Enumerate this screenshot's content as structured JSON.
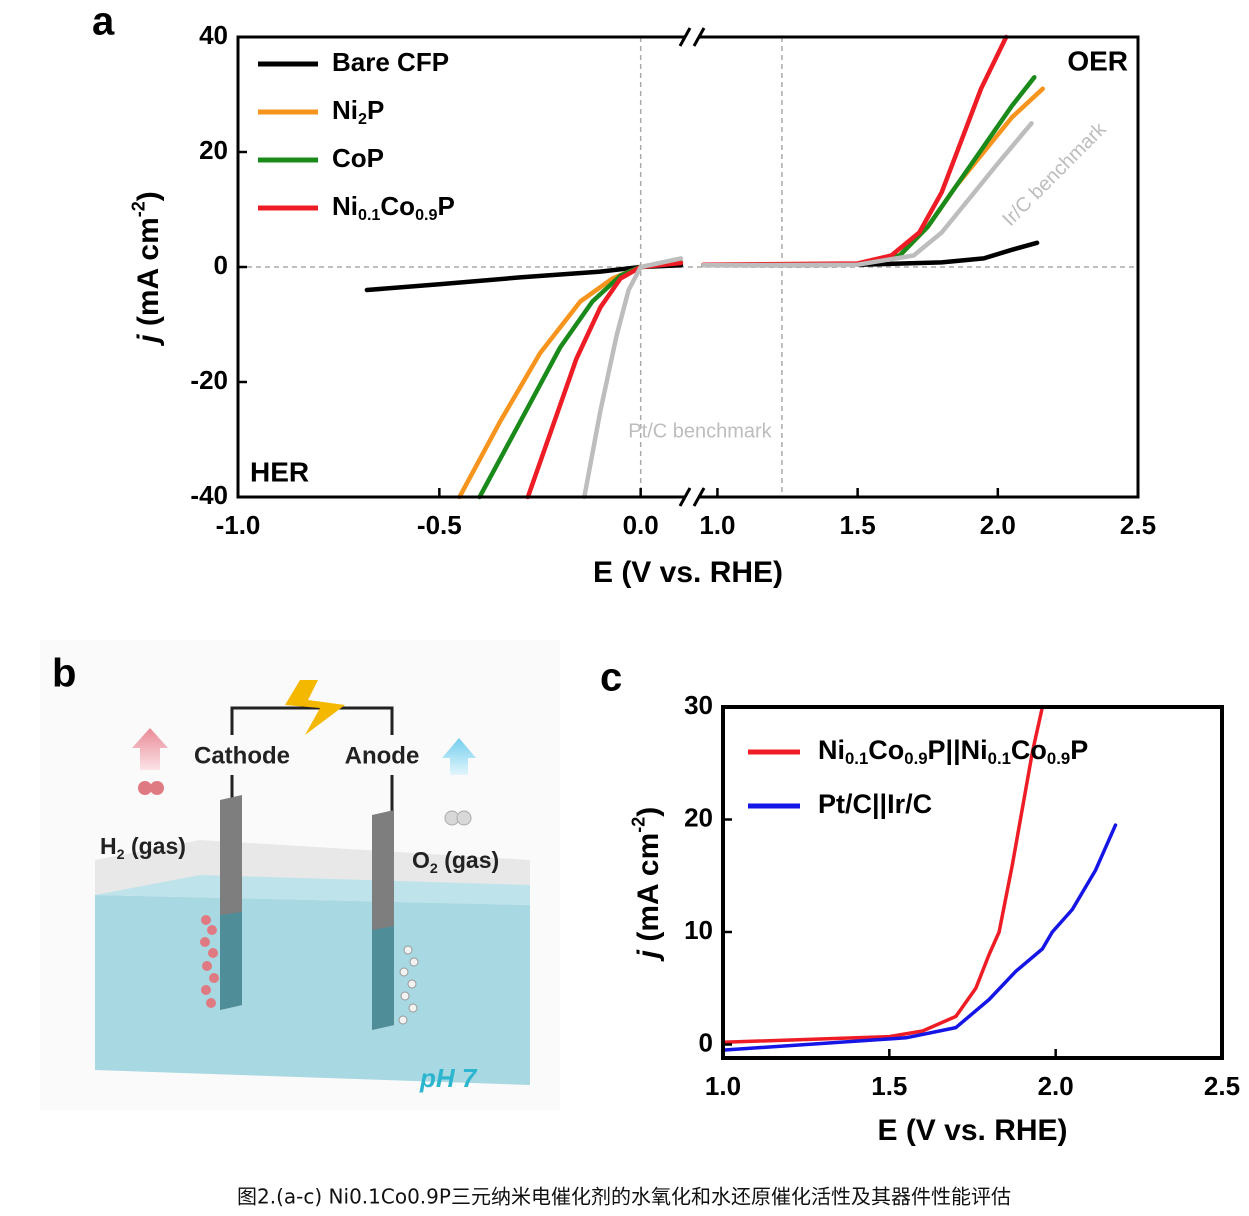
{
  "figure": {
    "caption": "图2.(a-c) Ni0.1Co0.9P三元纳米电催化剂的水氧化和水还原催化活性及其器件性能评估",
    "panel_b": {
      "label": "b",
      "cathode": "Cathode",
      "anode": "Anode",
      "h2": "H2 (gas)",
      "o2": "O2 (gas)",
      "ph": "pH 7"
    }
  },
  "chart_data": [
    {
      "type": "line",
      "panel_label": "a",
      "x_label": "E (V vs. RHE)",
      "y_label": "j (mA cm-2)",
      "xlim": [
        -1.0,
        2.5
      ],
      "xbreak": [
        0.12,
        0.92
      ],
      "xticks": [
        {
          "value": -1,
          "label": "-1.0"
        },
        -0.5,
        {
          "value": 0,
          "label": "0.0"
        },
        {
          "value": 1,
          "label": "1.0"
        },
        1.5,
        {
          "value": 2,
          "label": "2.0"
        },
        2.5
      ],
      "ylim": [
        -40,
        40
      ],
      "yticks": [
        -40,
        -20,
        0,
        20,
        40
      ],
      "grid": false,
      "legend": "upper left",
      "ref_lines": {
        "x": [
          0,
          1.23
        ],
        "y": [
          0
        ]
      },
      "annotations": [
        {
          "text": "HER"
        },
        {
          "text": "OER"
        }
      ],
      "series": [
        {
          "name": "Bare CFP",
          "color": "#000000",
          "x": [
            -0.68,
            -0.5,
            -0.3,
            -0.1,
            0,
            0.1,
            null,
            0.95,
            1.5,
            1.8,
            1.95,
            2.05,
            2.14
          ],
          "values": [
            -4,
            -3,
            -1.8,
            -0.8,
            0,
            0.3,
            null,
            0.3,
            0.4,
            0.8,
            1.5,
            3,
            4.2
          ]
        },
        {
          "name": "Ni2P",
          "color": "#f7941d",
          "x": [
            -0.45,
            -0.35,
            -0.25,
            -0.15,
            -0.07,
            0,
            0.1,
            null,
            0.95,
            1.5,
            1.65,
            1.75,
            1.85,
            1.95,
            2.05,
            2.16
          ],
          "values": [
            -40,
            -27,
            -15,
            -6,
            -2,
            0,
            0.8,
            null,
            0.3,
            0.5,
            2,
            7,
            14,
            20,
            26,
            31
          ]
        },
        {
          "name": "CoP",
          "color": "#1a8a1a",
          "x": [
            -0.4,
            -0.3,
            -0.2,
            -0.12,
            -0.05,
            0,
            0.1,
            null,
            0.95,
            1.5,
            1.65,
            1.75,
            1.85,
            1.95,
            2.05,
            2.13
          ],
          "values": [
            -40,
            -27,
            -14,
            -6,
            -1.5,
            0,
            0.8,
            null,
            0.3,
            0.5,
            2,
            7,
            14,
            21,
            28,
            33
          ]
        },
        {
          "name": "Ni0.1Co0.9P",
          "color": "#ee1c25",
          "x": [
            -0.28,
            -0.22,
            -0.16,
            -0.1,
            -0.05,
            0,
            0.1,
            null,
            0.95,
            1.5,
            1.62,
            1.72,
            1.8,
            1.87,
            1.94,
            2.03
          ],
          "values": [
            -40,
            -28,
            -16,
            -7,
            -2,
            0,
            0.7,
            null,
            0.4,
            0.6,
            2,
            6,
            13,
            22,
            31,
            40
          ]
        },
        {
          "name": "Pt/C benchmark",
          "color": "#bdbdbd",
          "legend": false,
          "x": [
            -0.14,
            -0.1,
            -0.06,
            -0.03,
            0,
            0.1
          ],
          "values": [
            -40,
            -25,
            -12,
            -4,
            0,
            1.5
          ]
        },
        {
          "name": "Ir/C benchmark",
          "color": "#bdbdbd",
          "legend": false,
          "x": [
            0.95,
            1.5,
            1.7,
            1.8,
            1.9,
            2.0,
            2.12
          ],
          "values": [
            0.3,
            0.4,
            2,
            6,
            12,
            18,
            25
          ]
        }
      ]
    },
    {
      "type": "line",
      "panel_label": "c",
      "x_label": "E (V vs. RHE)",
      "y_label": "j (mA cm-2)",
      "xlim": [
        1.0,
        2.5
      ],
      "xticks": [
        {
          "value": 1,
          "label": "1.0"
        },
        1.5,
        {
          "value": 2,
          "label": "2.0"
        },
        2.5
      ],
      "ylim": [
        -1.2,
        30
      ],
      "yticks": [
        0,
        10,
        20,
        30
      ],
      "grid": false,
      "legend": "upper left",
      "series": [
        {
          "name": "Ni0.1Co0.9P||Ni0.1Co0.9P",
          "color": "#ee1c25",
          "x": [
            1.0,
            1.5,
            1.6,
            1.7,
            1.76,
            1.8,
            1.83,
            1.87,
            1.9,
            1.93,
            1.96
          ],
          "values": [
            0.2,
            0.7,
            1.2,
            2.5,
            5,
            8,
            10,
            16,
            21,
            26,
            30
          ]
        },
        {
          "name": "Pt/C||Ir/C",
          "color": "#1515e6",
          "x": [
            1.0,
            1.55,
            1.7,
            1.8,
            1.88,
            1.96,
            1.99,
            2.05,
            2.12,
            2.18
          ],
          "values": [
            -0.5,
            0.6,
            1.5,
            4,
            6.5,
            8.5,
            10,
            12,
            15.5,
            19.5
          ]
        }
      ]
    }
  ]
}
